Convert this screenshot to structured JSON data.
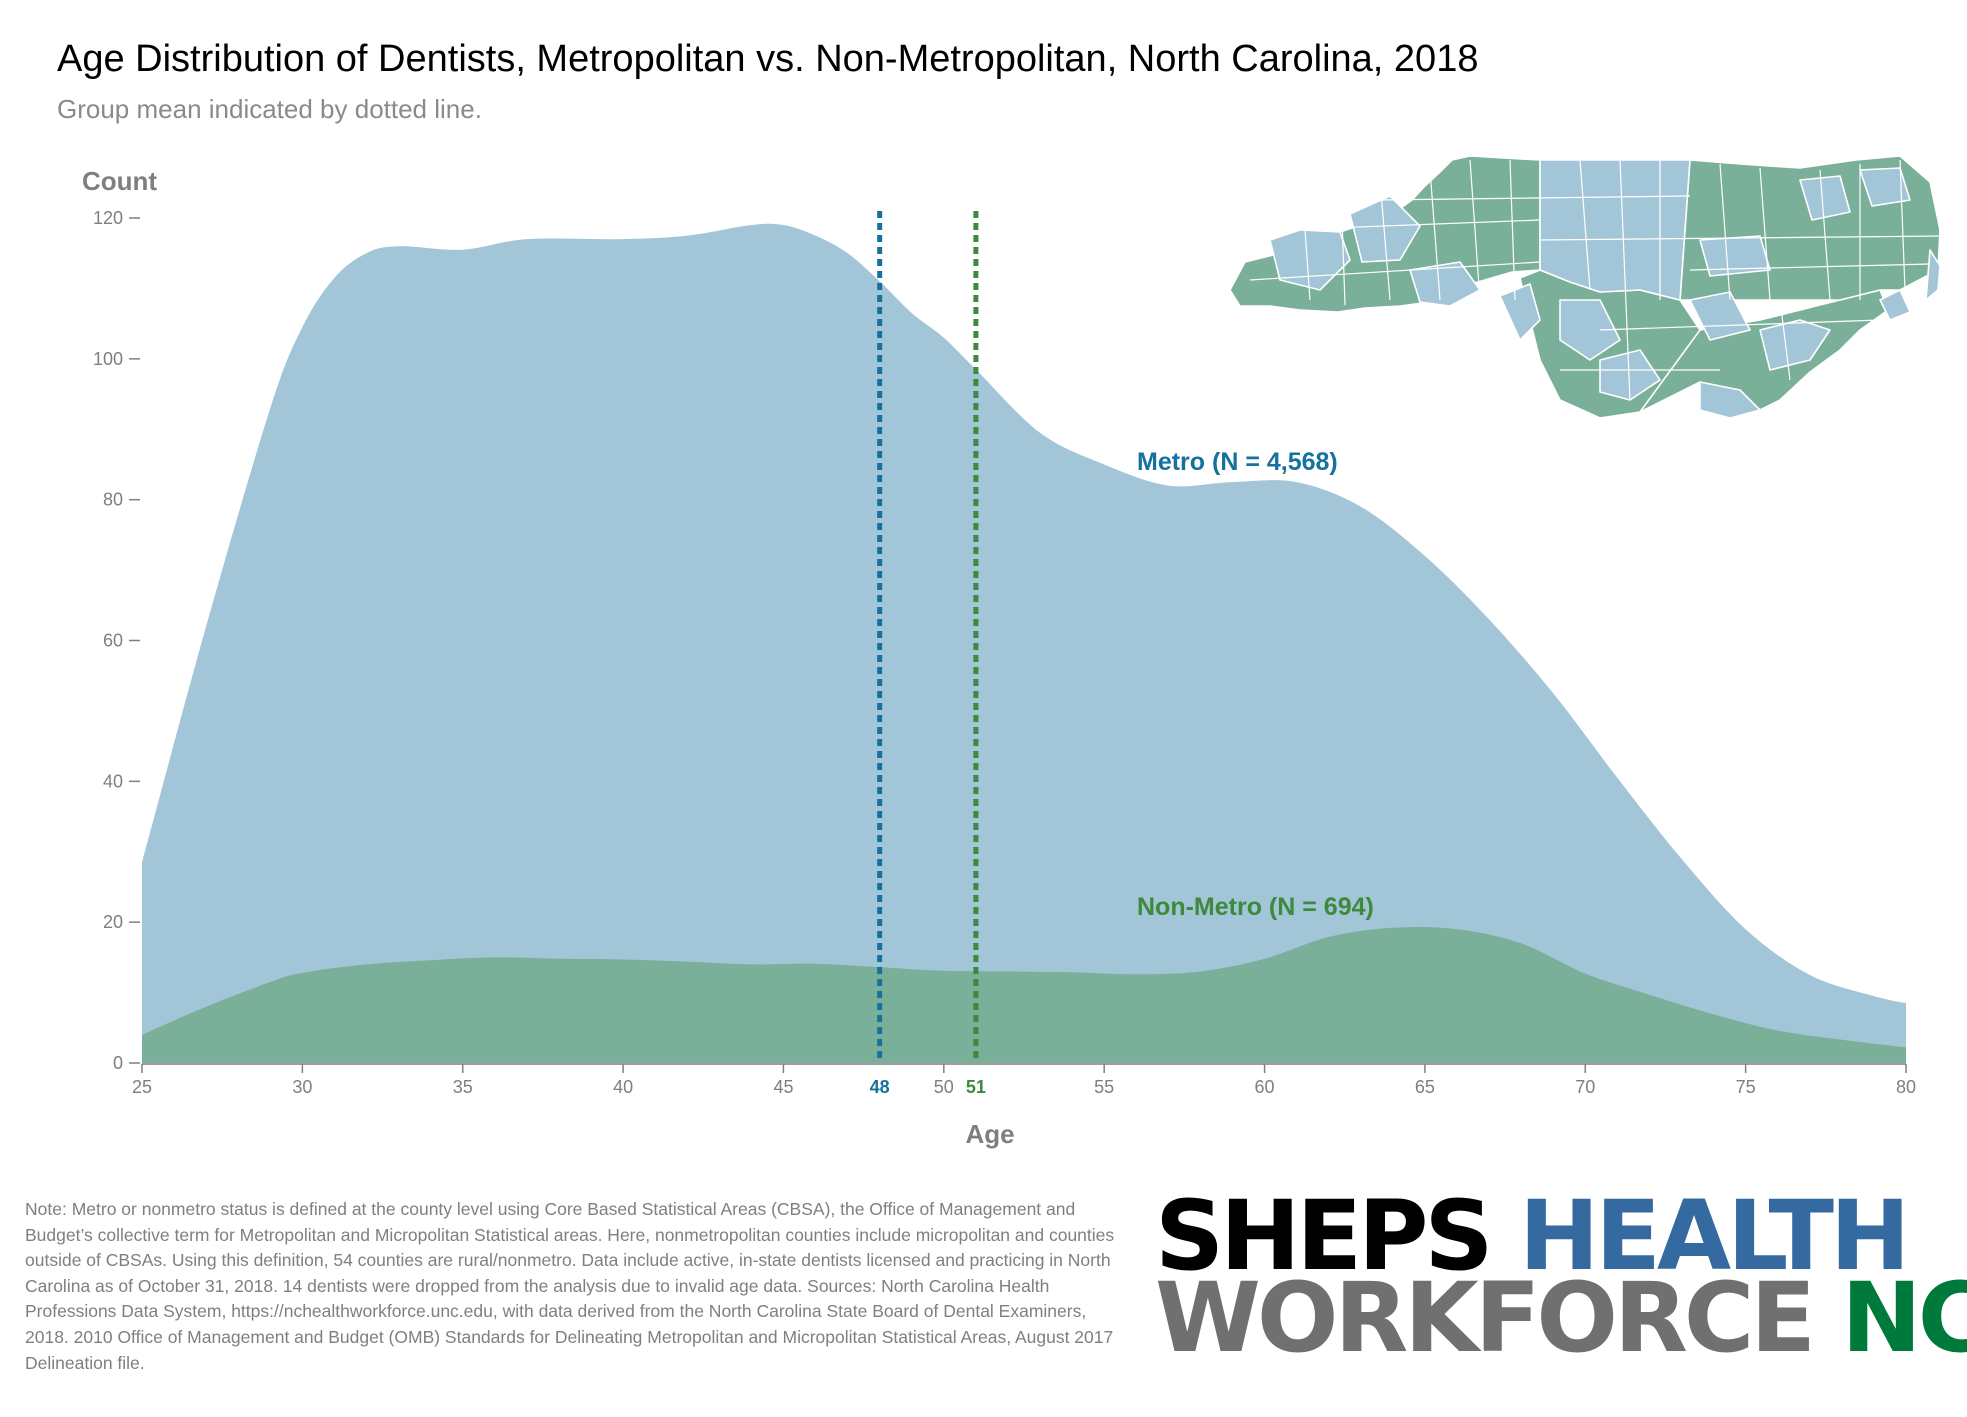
{
  "title": "Age Distribution of Dentists, Metropolitan vs. Non-Metropolitan, North Carolina, 2018",
  "subtitle": "Group mean indicated by dotted line.",
  "colors": {
    "metro": "#a3c5d8",
    "metro_label": "#16719e",
    "nonmetro": "#7aaf99",
    "nonmetro_label": "#3d8a3d",
    "axis": "#7f7f7f"
  },
  "chart_data": {
    "type": "area",
    "ylabel": "Count",
    "xlabel": "Age",
    "xlim": [
      25,
      80
    ],
    "ylim": [
      0,
      120
    ],
    "x_ticks": [
      25,
      30,
      35,
      40,
      45,
      50,
      55,
      60,
      65,
      70,
      75,
      80
    ],
    "y_ticks": [
      0,
      20,
      40,
      60,
      80,
      100,
      120
    ],
    "series": [
      {
        "name": "Metro (N = 4,568)",
        "x": [
          25,
          27,
          29,
          30,
          31,
          32,
          33,
          35,
          37,
          40,
          42,
          44,
          45,
          46,
          47,
          48,
          49,
          50,
          51,
          53,
          55,
          57,
          59,
          61,
          63,
          65,
          67,
          69,
          71,
          73,
          75,
          77,
          79,
          80
        ],
        "values": [
          28.5,
          62,
          93,
          104.5,
          111.5,
          115,
          116,
          115.5,
          117,
          117,
          117.5,
          119,
          119,
          117.5,
          115,
          111,
          106.5,
          103,
          98.5,
          89.5,
          85,
          82,
          82.5,
          82.5,
          79,
          72,
          63,
          52.5,
          40.5,
          29,
          19,
          12.5,
          9.5,
          8.5
        ]
      },
      {
        "name": "Non-Metro (N = 694)",
        "x": [
          25,
          27,
          29,
          30,
          32,
          34,
          36,
          38,
          40,
          42,
          44,
          46,
          48,
          50,
          52,
          54,
          56,
          58,
          60,
          62,
          64,
          66,
          68,
          70,
          72,
          74,
          76,
          78,
          80
        ],
        "values": [
          4,
          8,
          11.5,
          12.8,
          14,
          14.6,
          15,
          14.8,
          14.7,
          14.4,
          14,
          14.1,
          13.6,
          13.1,
          13,
          12.9,
          12.6,
          13,
          14.8,
          17.9,
          19.2,
          19,
          17,
          12.7,
          9.7,
          6.9,
          4.6,
          3.3,
          2.2
        ]
      }
    ],
    "means": [
      {
        "value": 48,
        "label": "48",
        "series": "Metro"
      },
      {
        "value": 51,
        "label": "51",
        "series": "Non-Metro"
      }
    ]
  },
  "note": "Note: Metro or nonmetro status is defined at the county level using Core Based Statistical Areas (CBSA), the Office of Management and Budget’s collective term for Metropolitan and Micropolitan Statistical areas. Here, nonmetropolitan counties include micropolitan and counties outside of CBSAs. Using this definition, 54 counties are rural/nonmetro. Data include active, in-state dentists licensed and practicing in North Carolina as of October 31, 2018. 14 dentists were dropped from the analysis due to invalid age data. Sources: North Carolina Health Professions Data System, https://nchealthworkforce.unc.edu, with data derived from the North Carolina State Board of Dental Examiners, 2018. 2010 Office of Management and Budget (OMB) Standards for Delineating Metropolitan and Micropolitan Statistical Areas, August 2017 Delineation file.",
  "logo": {
    "line1a": "SHEPS",
    "line1b": "HEALTH",
    "line2a": "WORKFORCE",
    "line2b": "NC"
  }
}
